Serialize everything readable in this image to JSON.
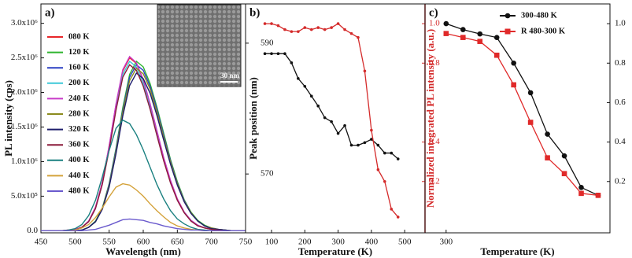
{
  "chart_data": [
    {
      "type": "line",
      "label": "a)",
      "xlabel": "Wavelength (nm)",
      "ylabel": "PL intensity (cps)",
      "inset_label": "30 nm",
      "legend": "upper-left",
      "xlim": [
        450,
        750
      ],
      "xticks": [
        450,
        500,
        550,
        600,
        650,
        700,
        750
      ],
      "ylim": [
        -30000,
        3280000
      ],
      "yticks": [
        {
          "value": 0,
          "label": "0.0"
        },
        {
          "value": 500000,
          "label": "5.0x10⁵"
        },
        {
          "value": 1000000,
          "label": "1.0x10⁶"
        },
        {
          "value": 1500000,
          "label": "1.5x10⁶"
        },
        {
          "value": 2000000,
          "label": "2.0x10⁶"
        },
        {
          "value": 2500000,
          "label": "2.5x10⁶"
        },
        {
          "value": 3000000,
          "label": "3.0x10⁶"
        }
      ],
      "x": [
        450,
        460,
        470,
        480,
        490,
        500,
        510,
        520,
        530,
        540,
        550,
        560,
        570,
        580,
        590,
        600,
        610,
        620,
        630,
        640,
        650,
        660,
        670,
        680,
        690,
        700,
        710,
        720,
        730,
        740,
        750
      ],
      "series": [
        {
          "name": "080 K",
          "color": "#e8262a",
          "values": [
            0,
            0,
            0,
            0,
            10000,
            20000,
            50000,
            140000,
            340000,
            700000,
            1220000,
            1820000,
            2310000,
            2500000,
            2420000,
            2180000,
            1830000,
            1440000,
            1050000,
            720000,
            460000,
            270000,
            150000,
            80000,
            40000,
            20000,
            10000,
            0,
            0,
            0,
            0
          ]
        },
        {
          "name": "120 K",
          "color": "#2fb52f",
          "values": [
            0,
            0,
            0,
            0,
            0,
            0,
            10000,
            50000,
            140000,
            330000,
            680000,
            1190000,
            1780000,
            2260000,
            2450000,
            2370000,
            2130000,
            1790000,
            1410000,
            1030000,
            710000,
            450000,
            270000,
            150000,
            80000,
            40000,
            20000,
            10000,
            0,
            0,
            0
          ]
        },
        {
          "name": "160 K",
          "color": "#2b3fc4",
          "values": [
            0,
            0,
            0,
            0,
            0,
            0,
            10000,
            50000,
            130000,
            320000,
            670000,
            1170000,
            1740000,
            2220000,
            2400000,
            2320000,
            2090000,
            1760000,
            1380000,
            1010000,
            690000,
            440000,
            260000,
            140000,
            70000,
            40000,
            20000,
            10000,
            0,
            0,
            0
          ]
        },
        {
          "name": "200 K",
          "color": "#3cc8d8",
          "values": [
            0,
            0,
            0,
            0,
            0,
            10000,
            50000,
            140000,
            330000,
            680000,
            1190000,
            1780000,
            2260000,
            2450000,
            2370000,
            2130000,
            1790000,
            1410000,
            1030000,
            710000,
            450000,
            270000,
            150000,
            80000,
            40000,
            20000,
            10000,
            0,
            0,
            0,
            0
          ]
        },
        {
          "name": "240 K",
          "color": "#c83ac8",
          "values": [
            0,
            0,
            0,
            0,
            10000,
            20000,
            50000,
            140000,
            340000,
            700000,
            1230000,
            1830000,
            2330000,
            2520000,
            2430000,
            2190000,
            1840000,
            1450000,
            1060000,
            730000,
            460000,
            270000,
            150000,
            80000,
            40000,
            20000,
            10000,
            0,
            0,
            0,
            0
          ]
        },
        {
          "name": "280 K",
          "color": "#8b8b1e",
          "values": [
            0,
            0,
            0,
            0,
            0,
            0,
            10000,
            50000,
            130000,
            320000,
            650000,
            1140000,
            1710000,
            2170000,
            2350000,
            2270000,
            2050000,
            1720000,
            1350000,
            990000,
            680000,
            430000,
            260000,
            140000,
            70000,
            40000,
            20000,
            10000,
            0,
            0,
            0
          ]
        },
        {
          "name": "320 K",
          "color": "#1d1d6b",
          "values": [
            0,
            0,
            0,
            0,
            0,
            0,
            10000,
            50000,
            130000,
            310000,
            630000,
            1110000,
            1660000,
            2100000,
            2280000,
            2200000,
            1990000,
            1670000,
            1310000,
            960000,
            660000,
            420000,
            250000,
            140000,
            70000,
            30000,
            20000,
            10000,
            0,
            0,
            0
          ]
        },
        {
          "name": "360 K",
          "color": "#8b1a3a",
          "values": [
            0,
            0,
            0,
            0,
            0,
            10000,
            50000,
            130000,
            320000,
            670000,
            1170000,
            1740000,
            2220000,
            2400000,
            2320000,
            2090000,
            1760000,
            1380000,
            1010000,
            690000,
            440000,
            260000,
            140000,
            70000,
            40000,
            20000,
            10000,
            0,
            0,
            0,
            0
          ]
        },
        {
          "name": "400 K",
          "color": "#1a8080",
          "values": [
            0,
            0,
            0,
            0,
            10000,
            30000,
            90000,
            220000,
            440000,
            780000,
            1160000,
            1480000,
            1600000,
            1550000,
            1390000,
            1170000,
            920000,
            670000,
            460000,
            290000,
            170000,
            100000,
            50000,
            20000,
            10000,
            0,
            0,
            0,
            0,
            0,
            0
          ]
        },
        {
          "name": "440 K",
          "color": "#d4a23a",
          "values": [
            0,
            0,
            0,
            0,
            0,
            10000,
            40000,
            90000,
            190000,
            330000,
            490000,
            630000,
            680000,
            660000,
            590000,
            500000,
            390000,
            290000,
            200000,
            120000,
            70000,
            40000,
            20000,
            10000,
            0,
            0,
            0,
            0,
            0,
            0,
            0
          ]
        },
        {
          "name": "480 K",
          "color": "#6a5acd",
          "values": [
            0,
            0,
            0,
            0,
            0,
            0,
            0,
            10000,
            20000,
            50000,
            80000,
            120000,
            160000,
            170000,
            160000,
            150000,
            120000,
            100000,
            70000,
            50000,
            30000,
            20000,
            10000,
            10000,
            0,
            0,
            0,
            0,
            0,
            0,
            0
          ]
        }
      ]
    },
    {
      "type": "line",
      "label": "b)",
      "xlabel": "Temperature (K)",
      "ylabel": "Peak position (nm)",
      "y2label": "Normalized integrated PL intensity (a.u.)",
      "y2color": "#d42a2a",
      "xlim": [
        22,
        561
      ],
      "xticks": [
        100,
        200,
        300,
        400,
        500
      ],
      "ylim": [
        561,
        596
      ],
      "yticks": [
        570,
        590
      ],
      "y2lim": [
        -0.06,
        1.1
      ],
      "y2ticks": [
        0.2,
        0.4,
        0.8,
        {
          "value": 1,
          "label": "1.0"
        }
      ],
      "x": [
        80,
        100,
        120,
        140,
        160,
        180,
        200,
        220,
        240,
        260,
        280,
        300,
        320,
        340,
        360,
        380,
        400,
        420,
        440,
        460,
        480
      ],
      "series": [
        {
          "color": "#111111",
          "marker": "circle",
          "values": [
            588.4,
            588.4,
            588.4,
            588.4,
            587.0,
            584.6,
            583.4,
            581.9,
            580.4,
            578.6,
            578.0,
            576.2,
            577.4,
            574.4,
            574.4,
            574.8,
            575.3,
            574.4,
            573.2,
            573.2,
            572.3
          ]
        },
        {
          "color": "#d42a2a",
          "marker": "circle",
          "axis": "y2",
          "values": [
            1.0,
            1.0,
            0.99,
            0.97,
            0.96,
            0.96,
            0.98,
            0.97,
            0.98,
            0.97,
            0.98,
            1.0,
            0.97,
            0.95,
            0.93,
            0.76,
            0.46,
            0.26,
            0.2,
            0.06,
            0.02
          ]
        }
      ]
    },
    {
      "type": "line",
      "label": "c)",
      "xlabel": "Temperature (K)",
      "legend": "upper-right",
      "xlim": [
        275,
        494
      ],
      "xticks": [
        300
      ],
      "ylim": [
        -0.06,
        1.1
      ],
      "yticks": [
        0.2,
        0.4,
        0.6,
        0.8,
        {
          "value": 1,
          "label": "1.0"
        }
      ],
      "x": [
        300,
        320,
        340,
        360,
        380,
        400,
        420,
        440,
        460,
        480
      ],
      "series": [
        {
          "name": "300-480 K",
          "color": "#111111",
          "marker": "circle",
          "values": [
            1.0,
            0.97,
            0.948,
            0.93,
            0.8,
            0.65,
            0.44,
            0.33,
            0.17,
            0.13
          ]
        },
        {
          "name": "R 480-300 K",
          "color": "#e02a2a",
          "marker": "square",
          "values": [
            0.95,
            0.93,
            0.91,
            0.84,
            0.69,
            0.5,
            0.32,
            0.24,
            0.14,
            0.13
          ]
        }
      ]
    }
  ]
}
